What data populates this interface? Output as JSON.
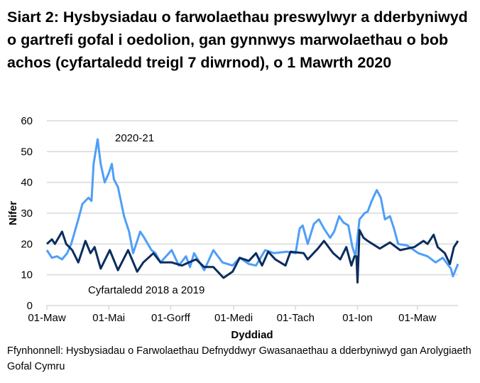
{
  "chart_data": {
    "type": "line",
    "title": "Siart 2: Hysbysiadau o farwolaethau preswylwyr a dderbyniwyd o gartrefi gofal i oedolion, gan gynnwys marwolaethau o bob achos (cyfartaledd treigl 7 diwrnod), o 1 Mawrth 2020",
    "xlabel": "Dyddiad",
    "ylabel": "Nifer",
    "ylim": [
      0,
      60
    ],
    "yticks": [
      0,
      10,
      20,
      30,
      40,
      50,
      60
    ],
    "x_unit": "days since 01 March 2020",
    "xlim": [
      0,
      405
    ],
    "xticks": [
      {
        "day": 0,
        "label": "01-Maw"
      },
      {
        "day": 61,
        "label": "01-Mai"
      },
      {
        "day": 122,
        "label": "01-Gorff"
      },
      {
        "day": 184,
        "label": "01-Medi"
      },
      {
        "day": 245,
        "label": "01-Tach"
      },
      {
        "day": 306,
        "label": "01-Ion"
      },
      {
        "day": 365,
        "label": "01-Maw"
      }
    ],
    "grid": true,
    "series": [
      {
        "name": "2020-21",
        "color": "#4f9ef8",
        "x": [
          0,
          5,
          10,
          15,
          20,
          24,
          31,
          35,
          41,
          44,
          46,
          50,
          53,
          57,
          61,
          64,
          66,
          70,
          76,
          81,
          85,
          92,
          96,
          103,
          107,
          112,
          123,
          130,
          137,
          141,
          145,
          155,
          164,
          173,
          183,
          190,
          199,
          206,
          215,
          224,
          236,
          245,
          249,
          252,
          257,
          263,
          268,
          273,
          279,
          283,
          288,
          292,
          297,
          301,
          304,
          308,
          313,
          316,
          320,
          325,
          329,
          333,
          338,
          342,
          346,
          355,
          366,
          375,
          383,
          390,
          398,
          400,
          405
        ],
        "y": [
          18,
          15.5,
          16,
          15,
          17,
          20,
          28,
          33,
          35,
          34,
          46,
          54,
          46,
          40,
          43,
          46,
          41,
          38.5,
          29,
          24,
          17,
          24,
          22,
          18,
          17,
          14,
          18,
          13,
          16,
          12.5,
          17,
          11.5,
          18,
          14,
          13,
          15.5,
          13.5,
          13,
          18,
          17,
          17.5,
          17,
          25,
          26,
          20,
          26.5,
          28,
          25,
          22,
          24,
          29,
          27,
          26,
          19,
          16,
          28,
          30,
          30.5,
          34,
          37.5,
          35,
          28,
          29,
          25,
          20,
          19.5,
          17,
          16,
          14,
          15.5,
          12,
          9.5,
          13.5
        ]
      },
      {
        "name": "Cyfartaledd 2018 a 2019",
        "color": "#0b2d5e",
        "x": [
          0,
          5,
          8,
          15,
          19,
          25,
          31,
          38,
          43,
          47,
          53,
          62,
          70,
          80,
          89,
          95,
          105,
          112,
          123,
          133,
          140,
          147,
          155,
          164,
          174,
          183,
          190,
          199,
          206,
          212,
          218,
          225,
          235,
          240,
          253,
          257,
          267,
          273,
          282,
          289,
          295,
          300,
          303,
          305,
          306,
          308,
          312,
          316,
          328,
          338,
          348,
          362,
          371,
          375,
          381,
          385,
          392,
          397,
          401,
          405
        ],
        "y": [
          20,
          21.5,
          20,
          24,
          20,
          18,
          14,
          21,
          17,
          19,
          12,
          18,
          11.5,
          18,
          11,
          14,
          17,
          14,
          14,
          13,
          14,
          15,
          12.5,
          12.5,
          9,
          11,
          15.5,
          14.5,
          17,
          13,
          17.5,
          15,
          13,
          17.5,
          17,
          15,
          18.5,
          21,
          17,
          15,
          19,
          13,
          16,
          16,
          7.5,
          24.5,
          22,
          21,
          18.5,
          20.5,
          18,
          19,
          21,
          20,
          23,
          19,
          17,
          13.5,
          19,
          21
        ]
      }
    ],
    "annotations": [
      {
        "text": "2020-21",
        "series": "2020-21"
      },
      {
        "text": "Cyfartaledd 2018 a 2019",
        "series": "Cyfartaledd 2018 a 2019"
      }
    ],
    "source": "Ffynhonnell: Hysbysiadau o Farwolaethau Defnyddwyr Gwasanaethau a dderbyniwyd gan Arolygiaeth Gofal Cymru"
  }
}
